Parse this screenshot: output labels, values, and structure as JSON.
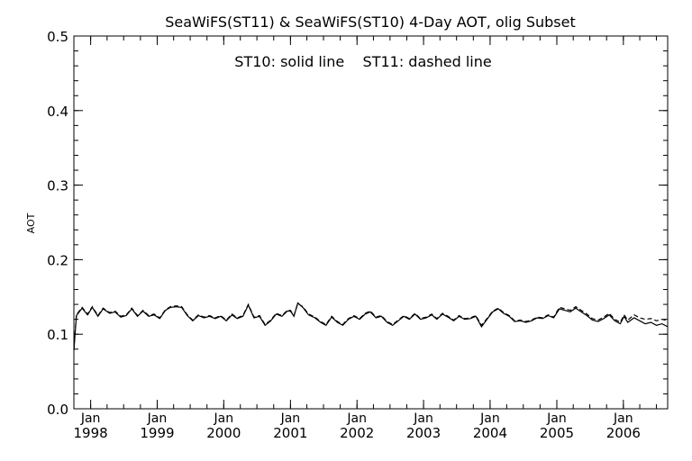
{
  "chart_data": {
    "type": "line",
    "title": "SeaWiFS(ST11) & SeaWiFS(ST10) 4-Day AOT, olig Subset",
    "annotation": "ST10: solid line    ST11: dashed line",
    "ylabel": "AOT",
    "xlabel": "",
    "ylim": [
      0.0,
      0.5
    ],
    "xlim": [
      "1997-10-01",
      "2006-09-01"
    ],
    "y_ticks": [
      "0.0",
      "0.1",
      "0.2",
      "0.3",
      "0.4",
      "0.5"
    ],
    "x_ticks": [
      {
        "month": "Jan",
        "year": "1998",
        "date": "1998-01-01"
      },
      {
        "month": "Jan",
        "year": "1999",
        "date": "1999-01-01"
      },
      {
        "month": "Jan",
        "year": "2000",
        "date": "2000-01-01"
      },
      {
        "month": "Jan",
        "year": "2001",
        "date": "2001-01-01"
      },
      {
        "month": "Jan",
        "year": "2002",
        "date": "2002-01-01"
      },
      {
        "month": "Jan",
        "year": "2003",
        "date": "2003-01-01"
      },
      {
        "month": "Jan",
        "year": "2004",
        "date": "2004-01-01"
      },
      {
        "month": "Jan",
        "year": "2005",
        "date": "2005-01-01"
      },
      {
        "month": "Jan",
        "year": "2006",
        "date": "2006-01-01"
      }
    ],
    "grid": false,
    "legend": "none",
    "series": [
      {
        "name": "ST10",
        "style": "solid",
        "color": "#000000",
        "points": [
          [
            "1997-10-01",
            0.078
          ],
          [
            "1997-10-15",
            0.125
          ],
          [
            "1997-11-15",
            0.135
          ],
          [
            "1997-12-15",
            0.126
          ],
          [
            "1998-01-10",
            0.136
          ],
          [
            "1998-02-10",
            0.124
          ],
          [
            "1998-03-10",
            0.134
          ],
          [
            "1998-04-15",
            0.128
          ],
          [
            "1998-05-15",
            0.13
          ],
          [
            "1998-06-15",
            0.123
          ],
          [
            "1998-07-15",
            0.125
          ],
          [
            "1998-08-15",
            0.134
          ],
          [
            "1998-09-15",
            0.124
          ],
          [
            "1998-10-15",
            0.131
          ],
          [
            "1998-11-15",
            0.124
          ],
          [
            "1998-12-15",
            0.126
          ],
          [
            "1999-01-15",
            0.121
          ],
          [
            "1999-02-15",
            0.132
          ],
          [
            "1999-03-15",
            0.136
          ],
          [
            "1999-04-15",
            0.137
          ],
          [
            "1999-05-15",
            0.136
          ],
          [
            "1999-06-15",
            0.125
          ],
          [
            "1999-07-15",
            0.118
          ],
          [
            "1999-08-15",
            0.125
          ],
          [
            "1999-09-15",
            0.122
          ],
          [
            "1999-10-15",
            0.124
          ],
          [
            "1999-11-15",
            0.121
          ],
          [
            "1999-12-15",
            0.124
          ],
          [
            "2000-01-15",
            0.118
          ],
          [
            "2000-02-15",
            0.126
          ],
          [
            "2000-03-15",
            0.121
          ],
          [
            "2000-04-15",
            0.124
          ],
          [
            "2000-05-15",
            0.139
          ],
          [
            "2000-06-15",
            0.122
          ],
          [
            "2000-07-15",
            0.124
          ],
          [
            "2000-08-15",
            0.112
          ],
          [
            "2000-09-15",
            0.118
          ],
          [
            "2000-10-15",
            0.127
          ],
          [
            "2000-11-15",
            0.124
          ],
          [
            "2000-12-15",
            0.131
          ],
          [
            "2001-01-01",
            0.131
          ],
          [
            "2001-01-20",
            0.124
          ],
          [
            "2001-02-10",
            0.142
          ],
          [
            "2001-03-10",
            0.136
          ],
          [
            "2001-04-10",
            0.126
          ],
          [
            "2001-05-15",
            0.122
          ],
          [
            "2001-06-15",
            0.116
          ],
          [
            "2001-07-15",
            0.112
          ],
          [
            "2001-08-15",
            0.123
          ],
          [
            "2001-09-15",
            0.116
          ],
          [
            "2001-10-15",
            0.112
          ],
          [
            "2001-11-15",
            0.12
          ],
          [
            "2001-12-15",
            0.124
          ],
          [
            "2002-01-15",
            0.12
          ],
          [
            "2002-02-15",
            0.127
          ],
          [
            "2002-03-15",
            0.13
          ],
          [
            "2002-04-15",
            0.122
          ],
          [
            "2002-05-15",
            0.124
          ],
          [
            "2002-06-15",
            0.116
          ],
          [
            "2002-07-15",
            0.112
          ],
          [
            "2002-08-15",
            0.118
          ],
          [
            "2002-09-15",
            0.124
          ],
          [
            "2002-10-15",
            0.12
          ],
          [
            "2002-11-15",
            0.127
          ],
          [
            "2002-12-15",
            0.12
          ],
          [
            "2003-01-15",
            0.122
          ],
          [
            "2003-02-15",
            0.126
          ],
          [
            "2003-03-15",
            0.12
          ],
          [
            "2003-04-15",
            0.127
          ],
          [
            "2003-05-15",
            0.123
          ],
          [
            "2003-06-15",
            0.118
          ],
          [
            "2003-07-15",
            0.124
          ],
          [
            "2003-08-15",
            0.12
          ],
          [
            "2003-09-15",
            0.121
          ],
          [
            "2003-10-15",
            0.124
          ],
          [
            "2003-11-15",
            0.11
          ],
          [
            "2003-12-15",
            0.12
          ],
          [
            "2004-01-15",
            0.13
          ],
          [
            "2004-02-15",
            0.134
          ],
          [
            "2004-03-15",
            0.128
          ],
          [
            "2004-04-15",
            0.124
          ],
          [
            "2004-05-15",
            0.117
          ],
          [
            "2004-06-15",
            0.118
          ],
          [
            "2004-07-15",
            0.116
          ],
          [
            "2004-08-15",
            0.118
          ],
          [
            "2004-09-15",
            0.122
          ],
          [
            "2004-10-15",
            0.121
          ],
          [
            "2004-11-15",
            0.125
          ],
          [
            "2004-12-15",
            0.122
          ],
          [
            "2005-01-15",
            0.134
          ],
          [
            "2005-02-15",
            0.132
          ],
          [
            "2005-03-15",
            0.13
          ],
          [
            "2005-04-15",
            0.135
          ],
          [
            "2005-05-15",
            0.13
          ],
          [
            "2005-06-15",
            0.125
          ],
          [
            "2005-07-15",
            0.119
          ],
          [
            "2005-08-15",
            0.117
          ],
          [
            "2005-09-15",
            0.121
          ],
          [
            "2005-10-15",
            0.126
          ],
          [
            "2005-11-15",
            0.118
          ],
          [
            "2005-12-15",
            0.114
          ],
          [
            "2006-01-05",
            0.124
          ],
          [
            "2006-01-25",
            0.116
          ],
          [
            "2006-03-01",
            0.122
          ],
          [
            "2006-04-01",
            0.118
          ],
          [
            "2006-05-01",
            0.114
          ],
          [
            "2006-06-01",
            0.116
          ],
          [
            "2006-07-01",
            0.112
          ],
          [
            "2006-08-01",
            0.114
          ],
          [
            "2006-09-01",
            0.11
          ]
        ]
      },
      {
        "name": "ST11",
        "style": "dashed",
        "color": "#000000",
        "points": [
          [
            "1997-10-01",
            0.08
          ],
          [
            "1997-10-15",
            0.126
          ],
          [
            "1997-11-15",
            0.136
          ],
          [
            "1997-12-15",
            0.127
          ],
          [
            "1998-01-10",
            0.137
          ],
          [
            "1998-02-10",
            0.125
          ],
          [
            "1998-03-10",
            0.135
          ],
          [
            "1998-04-15",
            0.129
          ],
          [
            "1998-05-15",
            0.131
          ],
          [
            "1998-06-15",
            0.124
          ],
          [
            "1998-07-15",
            0.126
          ],
          [
            "1998-08-15",
            0.135
          ],
          [
            "1998-09-15",
            0.125
          ],
          [
            "1998-10-15",
            0.132
          ],
          [
            "1998-11-15",
            0.125
          ],
          [
            "1998-12-15",
            0.127
          ],
          [
            "1999-01-15",
            0.122
          ],
          [
            "1999-02-15",
            0.133
          ],
          [
            "1999-03-15",
            0.137
          ],
          [
            "1999-04-15",
            0.138
          ],
          [
            "1999-05-15",
            0.137
          ],
          [
            "1999-06-15",
            0.126
          ],
          [
            "1999-07-15",
            0.119
          ],
          [
            "1999-08-15",
            0.126
          ],
          [
            "1999-09-15",
            0.123
          ],
          [
            "1999-10-15",
            0.125
          ],
          [
            "1999-11-15",
            0.122
          ],
          [
            "1999-12-15",
            0.125
          ],
          [
            "2000-01-15",
            0.119
          ],
          [
            "2000-02-15",
            0.127
          ],
          [
            "2000-03-15",
            0.122
          ],
          [
            "2000-04-15",
            0.125
          ],
          [
            "2000-05-15",
            0.14
          ],
          [
            "2000-06-15",
            0.123
          ],
          [
            "2000-07-15",
            0.125
          ],
          [
            "2000-08-15",
            0.113
          ],
          [
            "2000-09-15",
            0.119
          ],
          [
            "2000-10-15",
            0.128
          ],
          [
            "2000-11-15",
            0.125
          ],
          [
            "2000-12-15",
            0.132
          ],
          [
            "2001-01-01",
            0.132
          ],
          [
            "2001-01-20",
            0.125
          ],
          [
            "2001-02-10",
            0.141
          ],
          [
            "2001-03-10",
            0.137
          ],
          [
            "2001-04-10",
            0.127
          ],
          [
            "2001-05-15",
            0.123
          ],
          [
            "2001-06-15",
            0.117
          ],
          [
            "2001-07-15",
            0.113
          ],
          [
            "2001-08-15",
            0.124
          ],
          [
            "2001-09-15",
            0.117
          ],
          [
            "2001-10-15",
            0.113
          ],
          [
            "2001-11-15",
            0.121
          ],
          [
            "2001-12-15",
            0.125
          ],
          [
            "2002-01-15",
            0.121
          ],
          [
            "2002-02-15",
            0.128
          ],
          [
            "2002-03-15",
            0.131
          ],
          [
            "2002-04-15",
            0.123
          ],
          [
            "2002-05-15",
            0.125
          ],
          [
            "2002-06-15",
            0.117
          ],
          [
            "2002-07-15",
            0.113
          ],
          [
            "2002-08-15",
            0.119
          ],
          [
            "2002-09-15",
            0.125
          ],
          [
            "2002-10-15",
            0.121
          ],
          [
            "2002-11-15",
            0.128
          ],
          [
            "2002-12-15",
            0.121
          ],
          [
            "2003-01-15",
            0.123
          ],
          [
            "2003-02-15",
            0.127
          ],
          [
            "2003-03-15",
            0.121
          ],
          [
            "2003-04-15",
            0.128
          ],
          [
            "2003-05-15",
            0.124
          ],
          [
            "2003-06-15",
            0.119
          ],
          [
            "2003-07-15",
            0.125
          ],
          [
            "2003-08-15",
            0.121
          ],
          [
            "2003-09-15",
            0.122
          ],
          [
            "2003-10-15",
            0.125
          ],
          [
            "2003-11-15",
            0.112
          ],
          [
            "2003-12-15",
            0.121
          ],
          [
            "2004-01-15",
            0.131
          ],
          [
            "2004-02-15",
            0.135
          ],
          [
            "2004-03-15",
            0.129
          ],
          [
            "2004-04-15",
            0.125
          ],
          [
            "2004-05-15",
            0.118
          ],
          [
            "2004-06-15",
            0.119
          ],
          [
            "2004-07-15",
            0.117
          ],
          [
            "2004-08-15",
            0.119
          ],
          [
            "2004-09-15",
            0.123
          ],
          [
            "2004-10-15",
            0.122
          ],
          [
            "2004-11-15",
            0.126
          ],
          [
            "2004-12-15",
            0.123
          ],
          [
            "2005-01-15",
            0.136
          ],
          [
            "2005-02-15",
            0.134
          ],
          [
            "2005-03-15",
            0.132
          ],
          [
            "2005-04-15",
            0.137
          ],
          [
            "2005-05-15",
            0.132
          ],
          [
            "2005-06-15",
            0.127
          ],
          [
            "2005-07-15",
            0.121
          ],
          [
            "2005-08-15",
            0.119
          ],
          [
            "2005-09-15",
            0.123
          ],
          [
            "2005-10-15",
            0.128
          ],
          [
            "2005-11-15",
            0.12
          ],
          [
            "2005-12-15",
            0.116
          ],
          [
            "2006-01-05",
            0.126
          ],
          [
            "2006-01-25",
            0.119
          ],
          [
            "2006-03-01",
            0.126
          ],
          [
            "2006-04-01",
            0.122
          ],
          [
            "2006-05-01",
            0.12
          ],
          [
            "2006-06-01",
            0.121
          ],
          [
            "2006-07-01",
            0.118
          ],
          [
            "2006-08-01",
            0.12
          ],
          [
            "2006-09-01",
            0.118
          ]
        ]
      }
    ]
  }
}
